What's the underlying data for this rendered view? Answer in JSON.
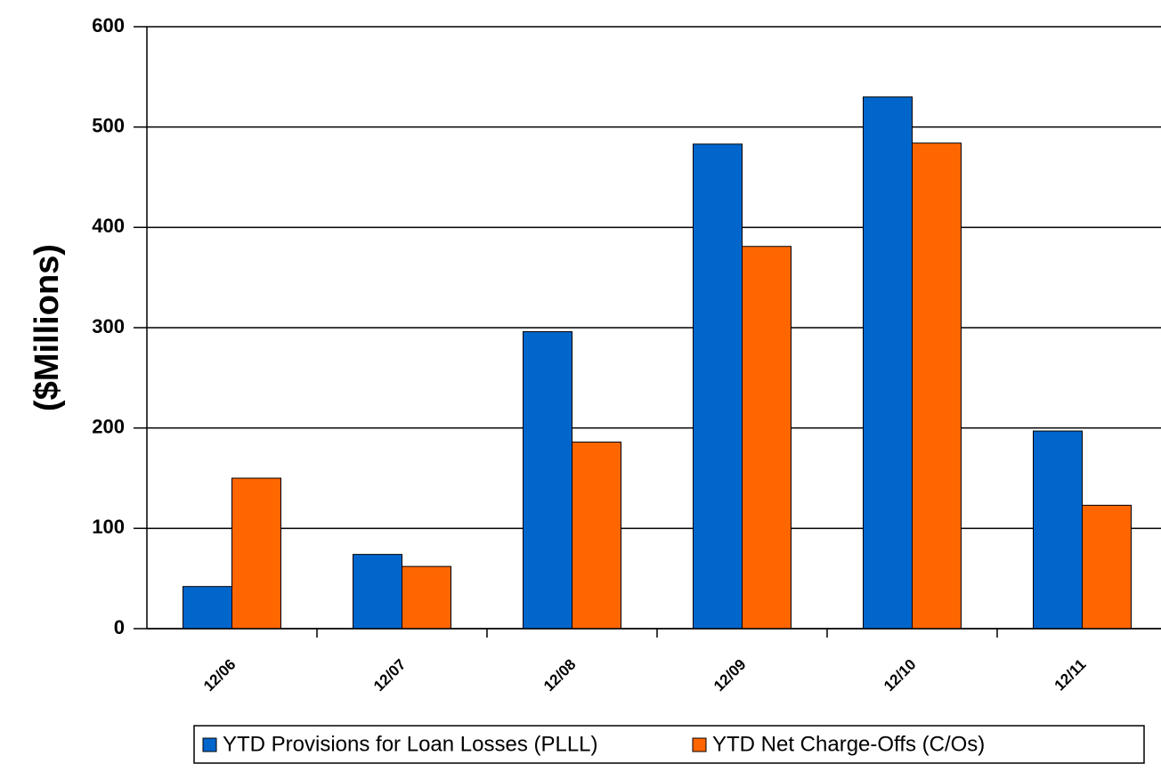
{
  "chart_data": {
    "type": "bar",
    "y_label": "($Millions)",
    "categories": [
      "12/06",
      "12/07",
      "12/08",
      "12/09",
      "12/10",
      "12/11"
    ],
    "series": [
      {
        "name": "YTD Provisions for Loan Losses (PLLL)",
        "color": "#0066cc",
        "values": [
          42,
          74,
          296,
          483,
          530,
          197
        ]
      },
      {
        "name": "YTD Net Charge-Offs (C/Os)",
        "color": "#ff6600",
        "values": [
          150,
          62,
          186,
          381,
          484,
          123
        ]
      }
    ],
    "ylim": [
      0,
      600
    ],
    "yticks": [
      0,
      100,
      200,
      300,
      400,
      500,
      600
    ],
    "grid": true
  }
}
